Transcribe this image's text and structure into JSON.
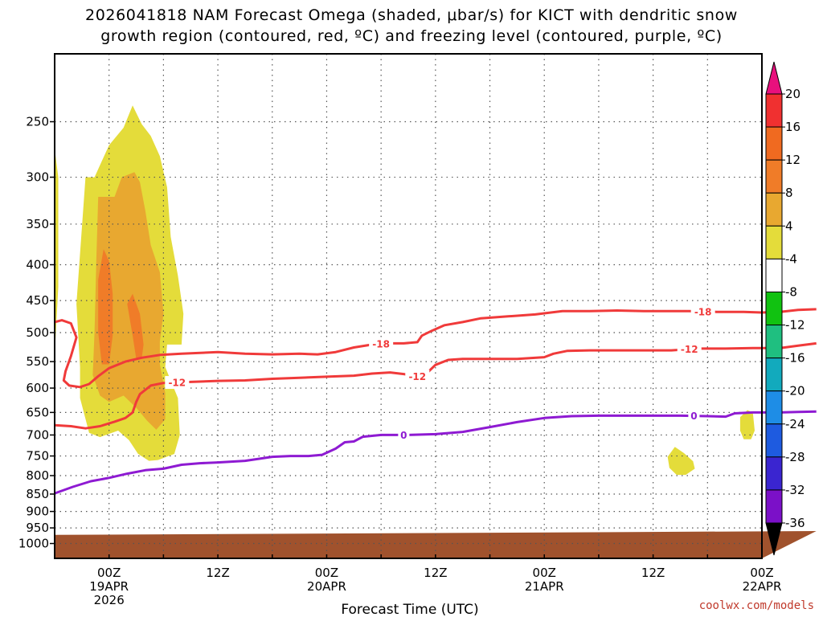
{
  "chart_data": {
    "type": "time-height cross section (contour)",
    "title_lines": [
      "2026041818 NAM Forecast Omega (shaded, μbar/s) for KICT with dendritic snow",
      "growth region (contoured, red, ºC) and freezing level (contoured, purple, ºC)"
    ],
    "xlabel": "Forecast Time (UTC)",
    "credit": "coolwx.com/models",
    "forecast_hours": [
      -6,
      72
    ],
    "x_ticks": [
      {
        "hour": 0,
        "label": [
          "00Z",
          "19APR",
          "2026"
        ]
      },
      {
        "hour": 12,
        "label": [
          "12Z"
        ]
      },
      {
        "hour": 24,
        "label": [
          "00Z",
          "20APR"
        ]
      },
      {
        "hour": 36,
        "label": [
          "12Z"
        ]
      },
      {
        "hour": 48,
        "label": [
          "00Z",
          "21APR"
        ]
      },
      {
        "hour": 60,
        "label": [
          "12Z"
        ]
      },
      {
        "hour": 72,
        "label": [
          "00Z",
          "22APR"
        ]
      }
    ],
    "x_grid_hours": [
      0,
      6,
      12,
      18,
      24,
      30,
      36,
      42,
      48,
      54,
      60,
      66,
      72
    ],
    "y_range_hpa": [
      1050,
      200
    ],
    "y_ticks": [
      250,
      300,
      350,
      400,
      450,
      500,
      550,
      600,
      650,
      700,
      750,
      800,
      850,
      900,
      950,
      1000
    ],
    "colorbar": {
      "units": "μbar/s",
      "labels": [
        "20",
        "16",
        "12",
        "8",
        "4",
        "-4",
        "-8",
        "-12",
        "-16",
        "-20",
        "-24",
        "-28",
        "-32",
        "-36"
      ],
      "colors": [
        "#e8107d",
        "#f03030",
        "#f06a20",
        "#f07c28",
        "#e8a830",
        "#e4dc3a",
        "#ffffff",
        "#11c211",
        "#1fbf80",
        "#12aabd",
        "#1e8de6",
        "#1e5be0",
        "#3a25d0",
        "#7b10c8",
        "#a60cc0",
        "#a0a0a0",
        "#000000"
      ]
    },
    "omega_shading": [
      {
        "level": 4,
        "color": "#e4dc3a",
        "points": [
          [
            -6,
            273
          ],
          [
            -5.6,
            300
          ],
          [
            -5.6,
            430
          ],
          [
            -6,
            540
          ]
        ]
      },
      {
        "level": 4,
        "color": "#e4dc3a",
        "points": [
          [
            -3.6,
            455
          ],
          [
            -2.6,
            300
          ],
          [
            -1.6,
            300
          ],
          [
            0,
            270
          ],
          [
            1.6,
            255
          ],
          [
            2.6,
            237
          ],
          [
            3.6,
            252
          ],
          [
            4.6,
            262
          ],
          [
            5.6,
            280
          ],
          [
            6.4,
            310
          ],
          [
            6.8,
            365
          ],
          [
            7.6,
            415
          ],
          [
            8.2,
            470
          ],
          [
            8.0,
            520
          ],
          [
            6.4,
            520
          ],
          [
            6.2,
            560
          ],
          [
            7.6,
            620
          ],
          [
            7.8,
            700
          ],
          [
            7.2,
            745
          ],
          [
            5.4,
            760
          ],
          [
            4.4,
            762
          ],
          [
            3.2,
            745
          ],
          [
            2.2,
            712
          ],
          [
            1.0,
            690
          ],
          [
            -1.0,
            705
          ],
          [
            -2.2,
            695
          ],
          [
            -3.2,
            620
          ],
          [
            -3.2,
            560
          ]
        ]
      },
      {
        "level": 8,
        "color": "#e8a830",
        "points": [
          [
            -1.4,
            392
          ],
          [
            -1.2,
            320
          ],
          [
            0.6,
            320
          ],
          [
            1.4,
            300
          ],
          [
            2.8,
            295
          ],
          [
            3.4,
            305
          ],
          [
            4.0,
            335
          ],
          [
            4.6,
            375
          ],
          [
            5.6,
            410
          ],
          [
            6.0,
            470
          ],
          [
            5.6,
            515
          ],
          [
            5.6,
            555
          ],
          [
            6.2,
            610
          ],
          [
            6.2,
            665
          ],
          [
            5.2,
            688
          ],
          [
            4.2,
            668
          ],
          [
            3.0,
            640
          ],
          [
            1.6,
            615
          ],
          [
            0.0,
            628
          ],
          [
            -1.0,
            615
          ],
          [
            -1.8,
            575
          ],
          [
            -1.6,
            500
          ]
        ]
      },
      {
        "level": 12,
        "color": "#f07c28",
        "points": [
          [
            -1.2,
            420
          ],
          [
            -0.6,
            380
          ],
          [
            0.0,
            395
          ],
          [
            0.4,
            440
          ],
          [
            0.4,
            505
          ],
          [
            0.0,
            555
          ],
          [
            -0.8,
            555
          ],
          [
            -1.2,
            500
          ]
        ]
      },
      {
        "level": 12,
        "color": "#f07c28",
        "points": [
          [
            2.0,
            455
          ],
          [
            2.6,
            440
          ],
          [
            3.4,
            470
          ],
          [
            3.8,
            520
          ],
          [
            3.6,
            545
          ],
          [
            3.0,
            545
          ],
          [
            2.6,
            505
          ]
        ]
      },
      {
        "level": 4,
        "color": "#e4dc3a",
        "points": [
          [
            61.6,
            752
          ],
          [
            62.4,
            728
          ],
          [
            63.4,
            743
          ],
          [
            64.4,
            763
          ],
          [
            64.6,
            782
          ],
          [
            63.6,
            798
          ],
          [
            62.6,
            798
          ],
          [
            61.8,
            780
          ]
        ]
      },
      {
        "level": 4,
        "color": "#e4dc3a",
        "points": [
          [
            69.6,
            660
          ],
          [
            70.4,
            645
          ],
          [
            71.0,
            650
          ],
          [
            71.2,
            690
          ],
          [
            70.8,
            710
          ],
          [
            70.0,
            710
          ],
          [
            69.6,
            690
          ]
        ]
      }
    ],
    "contours": [
      {
        "name": "dgz-top",
        "value": -18,
        "color": "#f03a3a",
        "label": "-18",
        "label_hours": [
          30,
          65.5
        ],
        "points": [
          [
            -6,
            483
          ],
          [
            -5.2,
            480
          ],
          [
            -4.2,
            485
          ],
          [
            -3.6,
            508
          ],
          [
            -4.2,
            540
          ],
          [
            -4.8,
            568
          ],
          [
            -5.0,
            585
          ],
          [
            -4.4,
            595
          ],
          [
            -3.2,
            598
          ],
          [
            -2.2,
            592
          ],
          [
            -1.2,
            577
          ],
          [
            0.0,
            562
          ],
          [
            1.8,
            550
          ],
          [
            3.6,
            543
          ],
          [
            5.6,
            538
          ],
          [
            8.0,
            536
          ],
          [
            12.0,
            533
          ],
          [
            15.0,
            536
          ],
          [
            18.0,
            537
          ],
          [
            21.0,
            536
          ],
          [
            23.0,
            537
          ],
          [
            25.0,
            533
          ],
          [
            27.0,
            525
          ],
          [
            29.0,
            520
          ],
          [
            31.0,
            518
          ],
          [
            32.5,
            518
          ],
          [
            34.0,
            516
          ],
          [
            34.5,
            505
          ],
          [
            35.6,
            497
          ],
          [
            37.0,
            488
          ],
          [
            39.0,
            483
          ],
          [
            41.0,
            477
          ],
          [
            44.0,
            474
          ],
          [
            47.0,
            471
          ],
          [
            50.0,
            466
          ],
          [
            53.0,
            466
          ],
          [
            56.0,
            465
          ],
          [
            59.0,
            466
          ],
          [
            62.0,
            466
          ],
          [
            64.0,
            466
          ],
          [
            67.0,
            467
          ],
          [
            70.0,
            467
          ],
          [
            72.0,
            468
          ],
          [
            74.0,
            467
          ],
          [
            76.0,
            464
          ],
          [
            78.0,
            463
          ]
        ]
      },
      {
        "name": "dgz-bottom",
        "value": -12,
        "color": "#f03a3a",
        "label": "-12",
        "label_hours": [
          7.5,
          34,
          64
        ],
        "points": [
          [
            -6,
            678
          ],
          [
            -4.2,
            680
          ],
          [
            -2.6,
            685
          ],
          [
            -1.0,
            680
          ],
          [
            0.6,
            670
          ],
          [
            1.8,
            662
          ],
          [
            2.6,
            650
          ],
          [
            3.0,
            628
          ],
          [
            3.4,
            612
          ],
          [
            4.6,
            595
          ],
          [
            6.0,
            590
          ],
          [
            9.0,
            588
          ],
          [
            12.0,
            586
          ],
          [
            15.0,
            585
          ],
          [
            18.0,
            582
          ],
          [
            21.0,
            580
          ],
          [
            24.0,
            578
          ],
          [
            27.0,
            576
          ],
          [
            29.0,
            572
          ],
          [
            31.0,
            570
          ],
          [
            32.5,
            573
          ],
          [
            34.0,
            577
          ],
          [
            35.0,
            572
          ],
          [
            36.0,
            556
          ],
          [
            37.4,
            547
          ],
          [
            39.0,
            545
          ],
          [
            42.0,
            545
          ],
          [
            45.0,
            545
          ],
          [
            48.0,
            542
          ],
          [
            49.0,
            536
          ],
          [
            50.5,
            531
          ],
          [
            53.0,
            530
          ],
          [
            56.0,
            530
          ],
          [
            59.0,
            530
          ],
          [
            62.0,
            530
          ],
          [
            65.0,
            527
          ],
          [
            68.0,
            527
          ],
          [
            71.0,
            526
          ],
          [
            74.0,
            526
          ],
          [
            76.0,
            522
          ],
          [
            78.0,
            518
          ]
        ]
      },
      {
        "name": "freezing-level",
        "value": 0,
        "color": "#8e1ad2",
        "label": "0",
        "label_hours": [
          32.5,
          64.5
        ],
        "points": [
          [
            -6,
            848
          ],
          [
            -4.0,
            830
          ],
          [
            -2.0,
            815
          ],
          [
            0.0,
            806
          ],
          [
            2.0,
            795
          ],
          [
            4.0,
            786
          ],
          [
            6.0,
            782
          ],
          [
            8.0,
            772
          ],
          [
            10.0,
            768
          ],
          [
            12.0,
            766
          ],
          [
            15.0,
            762
          ],
          [
            18.0,
            752
          ],
          [
            20.0,
            750
          ],
          [
            22.0,
            750
          ],
          [
            23.5,
            747
          ],
          [
            25.0,
            732
          ],
          [
            26.0,
            717
          ],
          [
            27.0,
            715
          ],
          [
            28.0,
            704
          ],
          [
            30.0,
            700
          ],
          [
            33.0,
            700
          ],
          [
            36.0,
            698
          ],
          [
            39.0,
            693
          ],
          [
            42.0,
            682
          ],
          [
            45.0,
            671
          ],
          [
            48.0,
            662
          ],
          [
            51.0,
            658
          ],
          [
            54.0,
            657
          ],
          [
            57.0,
            657
          ],
          [
            60.0,
            657
          ],
          [
            63.0,
            657
          ],
          [
            66.0,
            658
          ],
          [
            68.0,
            659
          ],
          [
            69.0,
            652
          ],
          [
            71.0,
            650
          ],
          [
            74.0,
            650
          ],
          [
            76.0,
            649
          ],
          [
            78.0,
            648
          ]
        ]
      }
    ],
    "ground": {
      "color": "#a0522d",
      "points": [
        [
          -6,
          972
        ],
        [
          78,
          960
        ]
      ]
    }
  }
}
